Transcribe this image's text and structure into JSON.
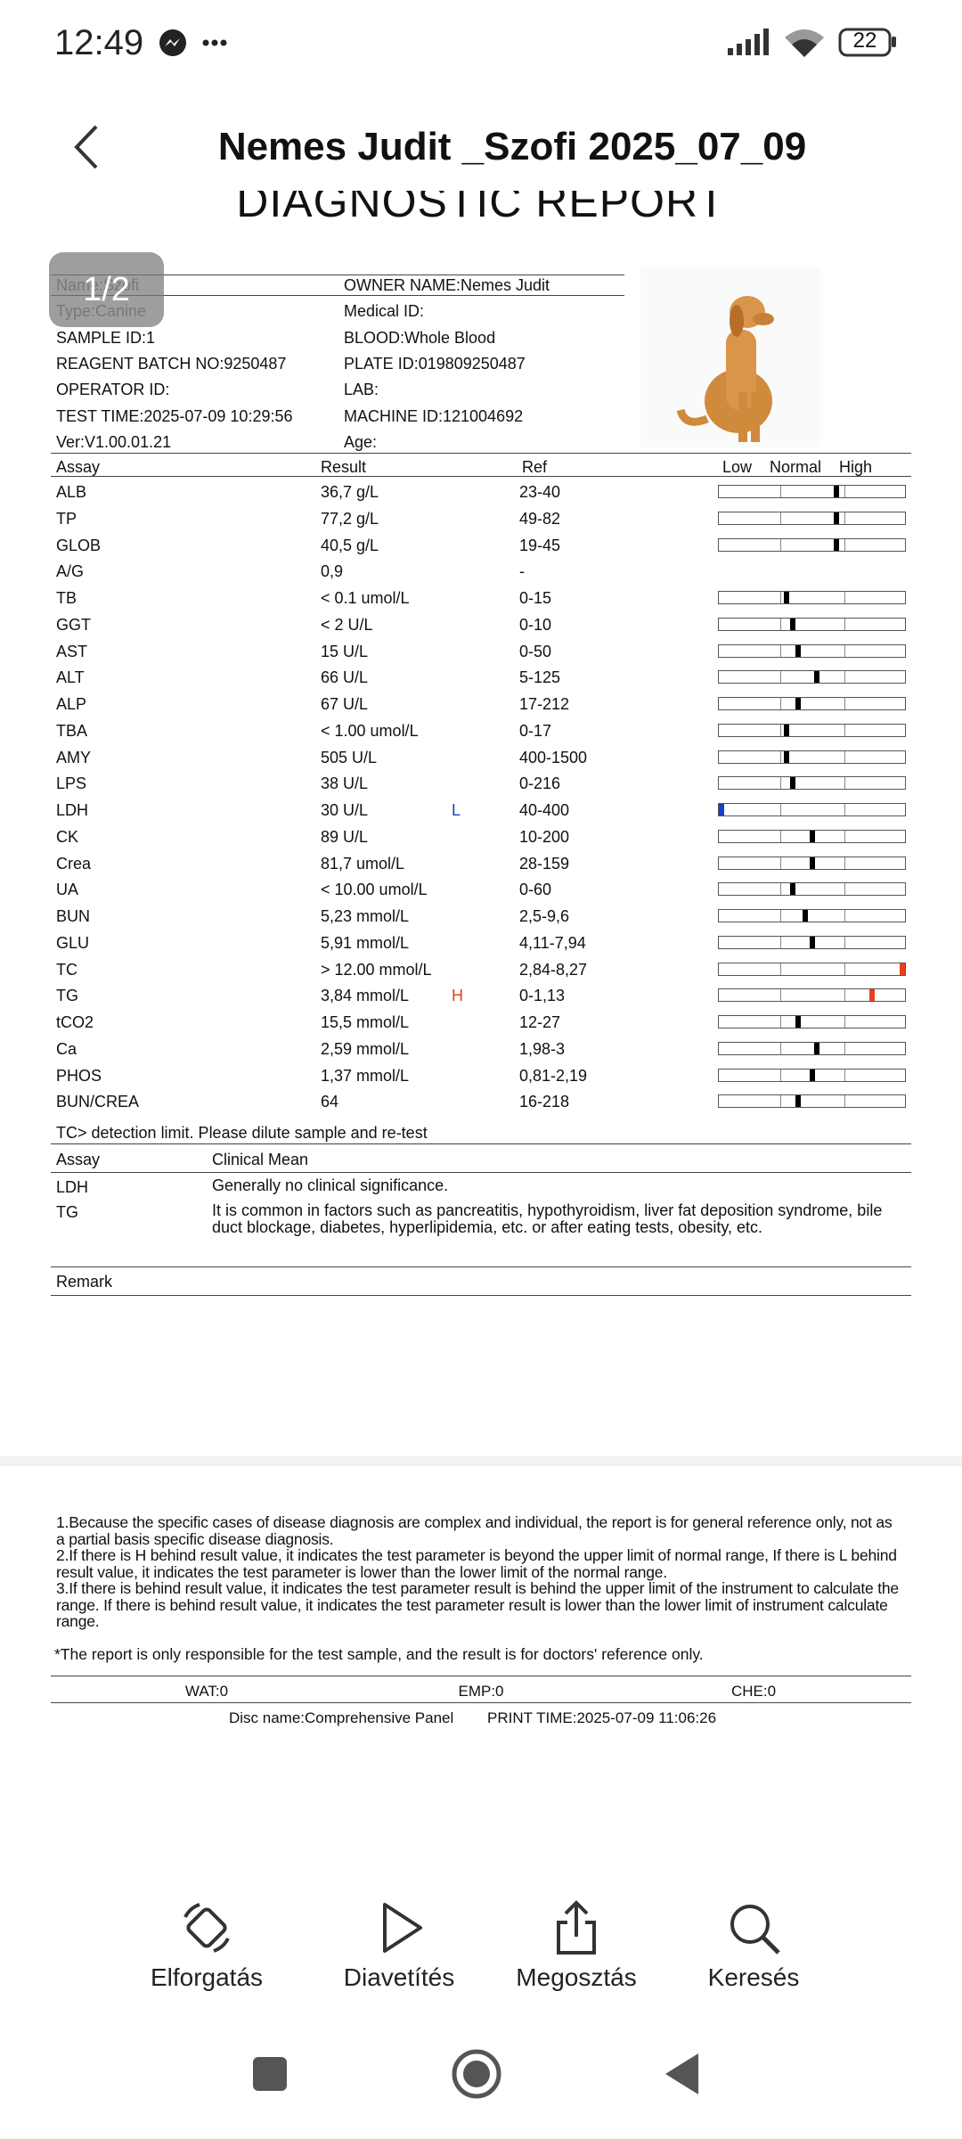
{
  "status_bar": {
    "time": "12:49",
    "battery": "22"
  },
  "header": {
    "title": "Nemes Judit _Szofi 2025_07_09"
  },
  "page_indicator": "1/2",
  "report": {
    "heading": "DIAGNOSTIC REPORT",
    "info": [
      [
        "Name:Szofi",
        "OWNER NAME:Nemes Judit"
      ],
      [
        "Type:Canine",
        "Medical ID:"
      ],
      [
        "SAMPLE ID:1",
        "BLOOD:Whole Blood"
      ],
      [
        "REAGENT BATCH NO:9250487",
        "PLATE ID:019809250487"
      ],
      [
        "OPERATOR ID:",
        "LAB:"
      ],
      [
        "TEST TIME:2025-07-09 10:29:56",
        "MACHINE ID:121004692"
      ],
      [
        "Ver:V1.00.01.21",
        "Age:"
      ]
    ],
    "assay_header": {
      "assay": "Assay",
      "result": "Result",
      "ref": "Ref",
      "low": "Low",
      "normal": "Normal",
      "high": "High"
    },
    "assays": [
      {
        "name": "ALB",
        "result": "36,7 g/L",
        "ref": "23-40"
      },
      {
        "name": "TP",
        "result": "77,2 g/L",
        "ref": "49-82"
      },
      {
        "name": "GLOB",
        "result": "40,5 g/L",
        "ref": "19-45"
      },
      {
        "name": "A/G",
        "result": "0,9",
        "ref": "-"
      },
      {
        "name": "TB",
        "result": "< 0.1 umol/L",
        "ref": "0-15"
      },
      {
        "name": "GGT",
        "result": "< 2 U/L",
        "ref": "0-10"
      },
      {
        "name": "AST",
        "result": "15 U/L",
        "ref": "0-50"
      },
      {
        "name": "ALT",
        "result": "66 U/L",
        "ref": "5-125"
      },
      {
        "name": "ALP",
        "result": "67 U/L",
        "ref": "17-212"
      },
      {
        "name": "TBA",
        "result": "< 1.00 umol/L",
        "ref": "0-17"
      },
      {
        "name": "AMY",
        "result": "505 U/L",
        "ref": "400-1500"
      },
      {
        "name": "LPS",
        "result": "38 U/L",
        "ref": "0-216"
      },
      {
        "name": "LDH",
        "result": "30 U/L",
        "flag": "L",
        "ref": "40-400"
      },
      {
        "name": "CK",
        "result": "89 U/L",
        "ref": "10-200"
      },
      {
        "name": "Crea",
        "result": "81,7 umol/L",
        "ref": "28-159"
      },
      {
        "name": "UA",
        "result": "< 10.00 umol/L",
        "ref": "0-60"
      },
      {
        "name": "BUN",
        "result": "5,23 mmol/L",
        "ref": "2,5-9,6"
      },
      {
        "name": "GLU",
        "result": "5,91 mmol/L",
        "ref": "4,11-7,94"
      },
      {
        "name": "TC",
        "result": "> 12.00 mmol/L",
        "ref": "2,84-8,27"
      },
      {
        "name": "TG",
        "result": "3,84 mmol/L",
        "flag": "H",
        "ref": "0-1,13"
      },
      {
        "name": "tCO2",
        "result": "15,5 mmol/L",
        "ref": "12-27"
      },
      {
        "name": "Ca",
        "result": "2,59 mmol/L",
        "ref": "1,98-3"
      },
      {
        "name": "PHOS",
        "result": "1,37 mmol/L",
        "ref": "0,81-2,19"
      },
      {
        "name": "BUN/CREA",
        "result": "64",
        "ref": "16-218"
      }
    ],
    "detection_note": "TC> detection limit. Please dilute sample and re-test",
    "clinical_header": {
      "assay": "Assay",
      "mean": "Clinical Mean"
    },
    "clinical": [
      [
        "LDH",
        "Generally no clinical significance."
      ],
      [
        "TG",
        "It is common in factors such as pancreatitis, hypothyroidism, liver fat deposition syndrome, bile duct blockage, diabetes, hyperlipidemia, etc. or after eating tests, obesity, etc."
      ]
    ],
    "remark": "Remark"
  },
  "page2": {
    "notes": [
      "1.Because the specific cases of disease diagnosis are complex and individual, the report is for general reference only, not as a partial basis specific disease diagnosis.",
      "2.If there is H behind result value, it indicates the test parameter is beyond the upper limit of normal range, If there is L behind result value, it indicates the test parameter is lower than the lower limit of the normal range.",
      "3.If there is  behind result value, it indicates the test parameter result is behind the upper limit of the instrument to calculate the range. If there is  behind result value, it indicates the test parameter result is lower than the lower limit of instrument calculate range."
    ],
    "disclaimer": "*The report is only responsible for the test sample, and the result is for doctors' reference only.",
    "counters": [
      "WAT:0",
      "EMP:0",
      "CHE:0"
    ],
    "disc_name": "Disc name:Comprehensive Panel",
    "print_time": "PRINT TIME:2025-07-09 11:06:26"
  },
  "toolbar": [
    "Elforgatás",
    "Diavetítés",
    "Megosztás",
    "Keresés"
  ]
}
